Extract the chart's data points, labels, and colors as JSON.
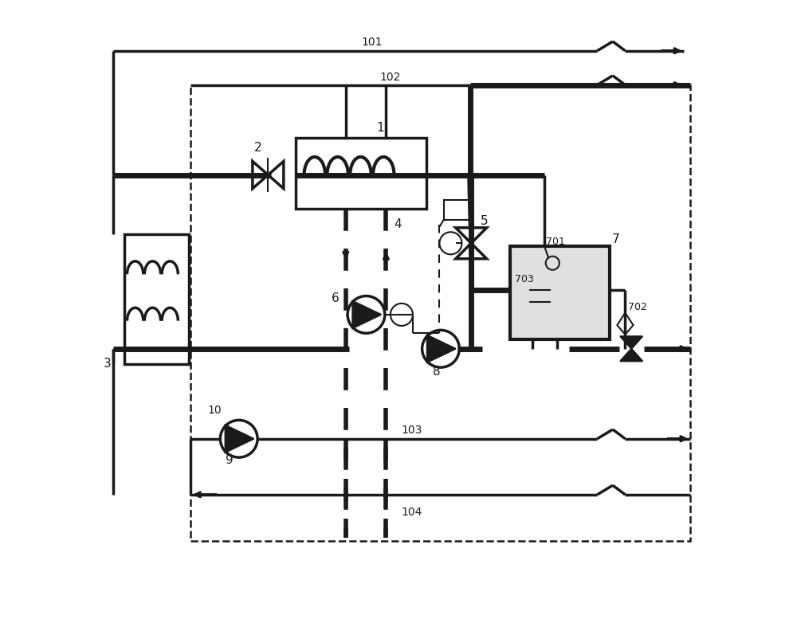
{
  "bg_color": "#ffffff",
  "line_color": "#1a1a1a",
  "thick_lw": 5,
  "medium_lw": 2.5,
  "thin_lw": 1.5,
  "figsize": [
    10.0,
    7.82
  ],
  "dpi": 100
}
